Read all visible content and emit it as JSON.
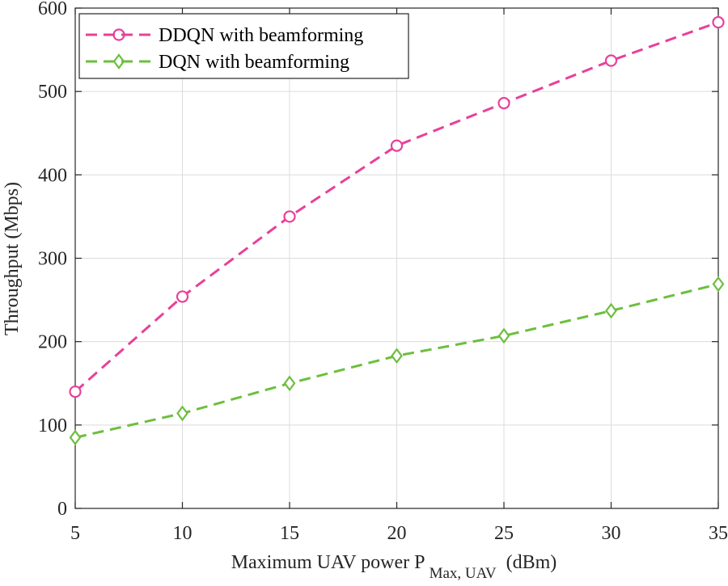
{
  "chart_data": {
    "type": "line",
    "title": "",
    "xlabel": "Maximum UAV power P",
    "xlabel_subscript": "Max, UAV",
    "xlabel_unit": "(dBm)",
    "ylabel": "Throughput (Mbps)",
    "xlim": [
      5,
      35
    ],
    "ylim": [
      0,
      600
    ],
    "x_ticks": [
      "5",
      "10",
      "15",
      "20",
      "25",
      "30",
      "35"
    ],
    "y_ticks": [
      "0",
      "100",
      "200",
      "300",
      "400",
      "500",
      "600"
    ],
    "grid": true,
    "legend_position": "top-left",
    "x": [
      5,
      10,
      15,
      20,
      25,
      30,
      35
    ],
    "series": [
      {
        "name": "DDQN with beamforming",
        "color": "#e8409a",
        "marker": "circle",
        "values": [
          140,
          254,
          350,
          435,
          486,
          537,
          583
        ]
      },
      {
        "name": "DQN with beamforming",
        "color": "#6cbf3e",
        "marker": "diamond",
        "values": [
          85,
          114,
          150,
          183,
          207,
          237,
          269
        ]
      }
    ]
  }
}
